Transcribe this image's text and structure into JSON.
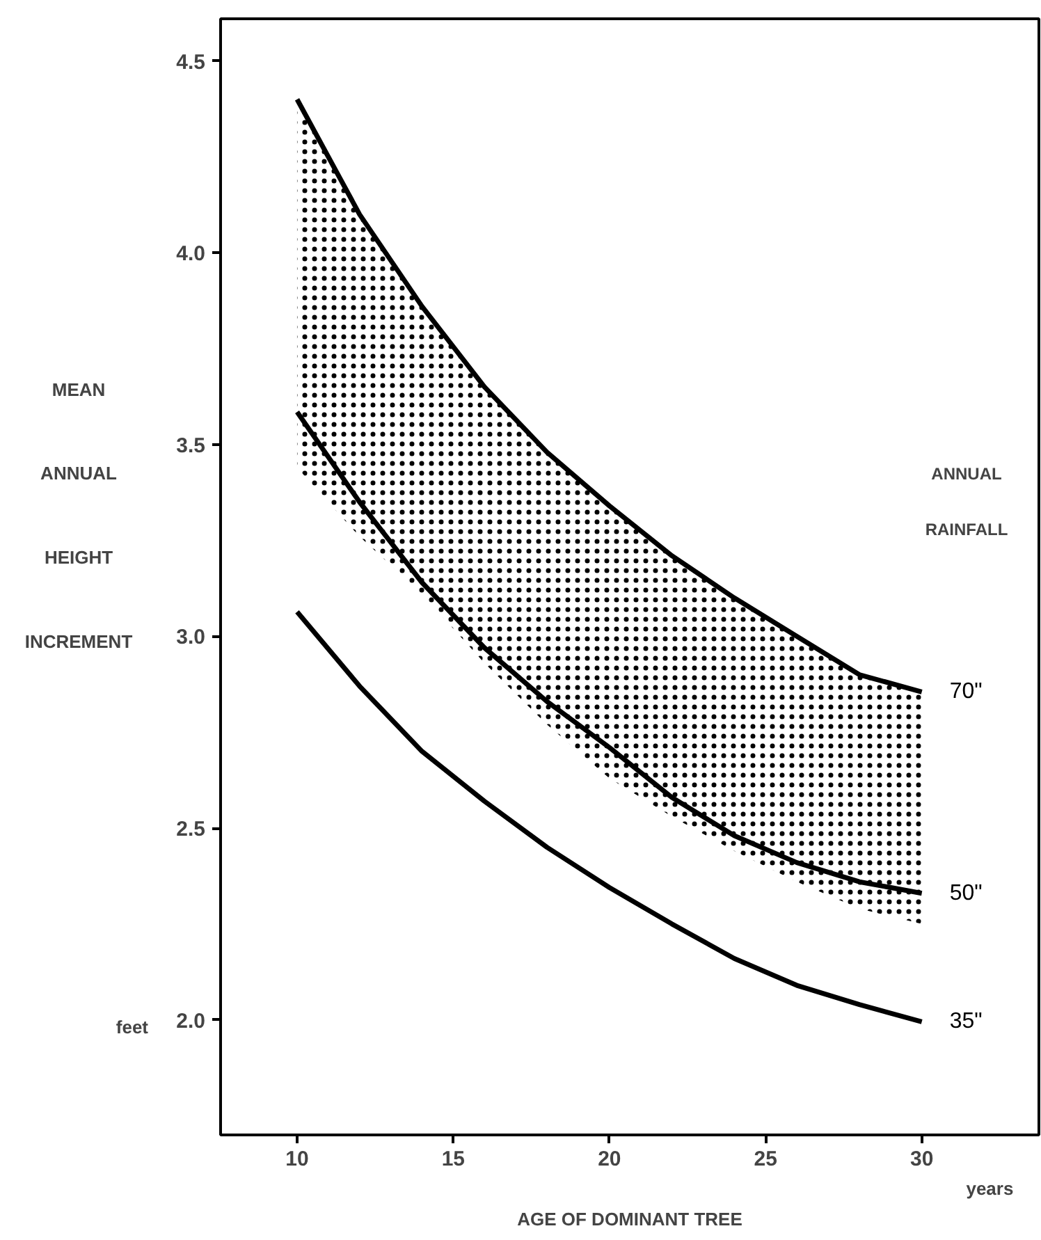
{
  "chart_data": {
    "type": "line",
    "ylabel": "MEAN ANNUAL HEIGHT INCREMENT",
    "xlabel": "AGE OF DOMINANT TREE",
    "legend_title": "ANNUAL RAINFALL",
    "x": [
      10,
      12,
      14,
      16,
      18,
      20,
      22,
      24,
      26,
      28,
      30
    ],
    "series": [
      {
        "name": "70\"",
        "color": "#000000",
        "values": [
          4.4,
          4.1,
          3.86,
          3.65,
          3.48,
          3.34,
          3.21,
          3.1,
          3.0,
          2.9,
          2.855
        ],
        "lower": [
          3.44,
          3.26,
          3.11,
          2.93,
          2.77,
          2.63,
          2.53,
          2.44,
          2.36,
          2.29,
          2.25
        ],
        "upper": [
          4.4,
          4.1,
          3.86,
          3.65,
          3.48,
          3.34,
          3.21,
          3.1,
          3.0,
          2.9,
          2.855
        ]
      },
      {
        "name": "50\"",
        "color": "#000000",
        "values": [
          3.585,
          3.35,
          3.14,
          2.97,
          2.83,
          2.71,
          2.58,
          2.48,
          2.41,
          2.36,
          2.33
        ]
      },
      {
        "name": "35\"",
        "color": "#000000",
        "values": [
          3.064,
          2.87,
          2.7,
          2.57,
          2.45,
          2.345,
          2.25,
          2.16,
          2.09,
          2.04,
          1.995
        ]
      }
    ],
    "xlim": [
      7.55,
      33.75
    ],
    "ylim": [
      1.7,
      4.61
    ],
    "xticks": [
      10,
      15,
      20,
      25,
      30
    ],
    "yticks": [
      {
        "value": 2,
        "label": "2.0"
      },
      2.5,
      {
        "value": 3,
        "label": "3.0"
      },
      3.5,
      {
        "value": 4,
        "label": "4.0"
      },
      4.5
    ],
    "annotations": [
      "feet",
      "years"
    ],
    "grid": false,
    "legend": "right",
    "marker": "none",
    "line_style": "solid"
  }
}
